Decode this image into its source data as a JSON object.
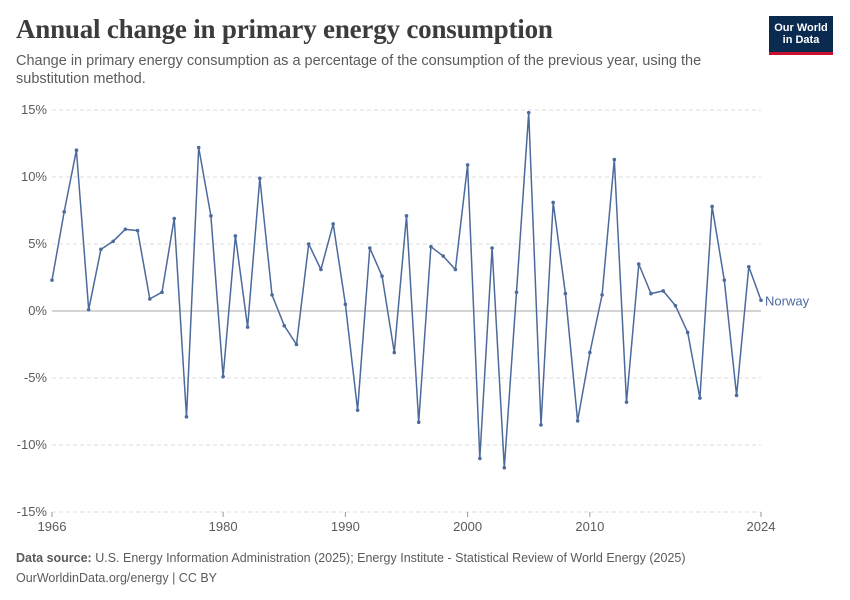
{
  "header": {
    "title": "Annual change in primary energy consumption",
    "subtitle": "Change in primary energy consumption as a percentage of the consumption of the previous year, using the substitution method.",
    "logo_line1": "Our World",
    "logo_line2": "in Data"
  },
  "footer": {
    "source_label": "Data source:",
    "source_text": "U.S. Energy Information Administration (2025); Energy Institute - Statistical Review of World Energy (2025)",
    "credit": "OurWorldinData.org/energy | CC BY"
  },
  "colors": {
    "series": "#4c6a9c",
    "grid": "#dddddd",
    "zero_line": "#aaaaaa",
    "text": "#5b5b5b"
  },
  "chart_data": {
    "type": "line",
    "title": "Annual change in primary energy consumption",
    "ylim": [
      -15,
      15
    ],
    "xlim": [
      1966,
      2024
    ],
    "y_ticks": [
      {
        "value": 15,
        "label": "15%"
      },
      {
        "value": 10,
        "label": "10%"
      },
      {
        "value": 5,
        "label": "5%"
      },
      {
        "value": 0,
        "label": "0%"
      },
      {
        "value": -5,
        "label": "-5%"
      },
      {
        "value": -10,
        "label": "-10%"
      },
      {
        "value": -15,
        "label": "-15%"
      }
    ],
    "x_ticks": [
      {
        "value": 1966,
        "label": "1966"
      },
      {
        "value": 1980,
        "label": "1980"
      },
      {
        "value": 1990,
        "label": "1990"
      },
      {
        "value": 2000,
        "label": "2000"
      },
      {
        "value": 2010,
        "label": "2010"
      },
      {
        "value": 2024,
        "label": "2024"
      }
    ],
    "grid": true,
    "series": [
      {
        "name": "Norway",
        "x": [
          1966,
          1967,
          1968,
          1969,
          1970,
          1971,
          1972,
          1973,
          1974,
          1975,
          1976,
          1977,
          1978,
          1979,
          1980,
          1981,
          1982,
          1983,
          1984,
          1985,
          1986,
          1987,
          1988,
          1989,
          1990,
          1991,
          1992,
          1993,
          1994,
          1995,
          1996,
          1997,
          1998,
          1999,
          2000,
          2001,
          2002,
          2003,
          2004,
          2005,
          2006,
          2007,
          2008,
          2009,
          2010,
          2011,
          2012,
          2013,
          2014,
          2015,
          2016,
          2017,
          2018,
          2019,
          2020,
          2021,
          2022,
          2023,
          2024
        ],
        "values": [
          2.3,
          7.4,
          12.0,
          0.1,
          4.6,
          5.2,
          6.1,
          6.0,
          0.9,
          1.4,
          6.9,
          -7.9,
          12.2,
          7.1,
          -4.9,
          5.6,
          -1.2,
          9.9,
          1.2,
          -1.1,
          -2.5,
          5.0,
          3.1,
          6.5,
          0.5,
          -7.4,
          4.7,
          2.6,
          -3.1,
          7.1,
          -8.3,
          4.8,
          4.1,
          3.1,
          10.9,
          -11.0,
          4.7,
          -11.7,
          1.4,
          14.8,
          -8.5,
          8.1,
          1.3,
          -8.2,
          -3.1,
          1.2,
          11.3,
          -6.8,
          3.5,
          1.3,
          1.5,
          0.4,
          -1.6,
          -6.5,
          7.8,
          2.3,
          -6.3,
          3.3,
          0.8
        ]
      }
    ]
  }
}
